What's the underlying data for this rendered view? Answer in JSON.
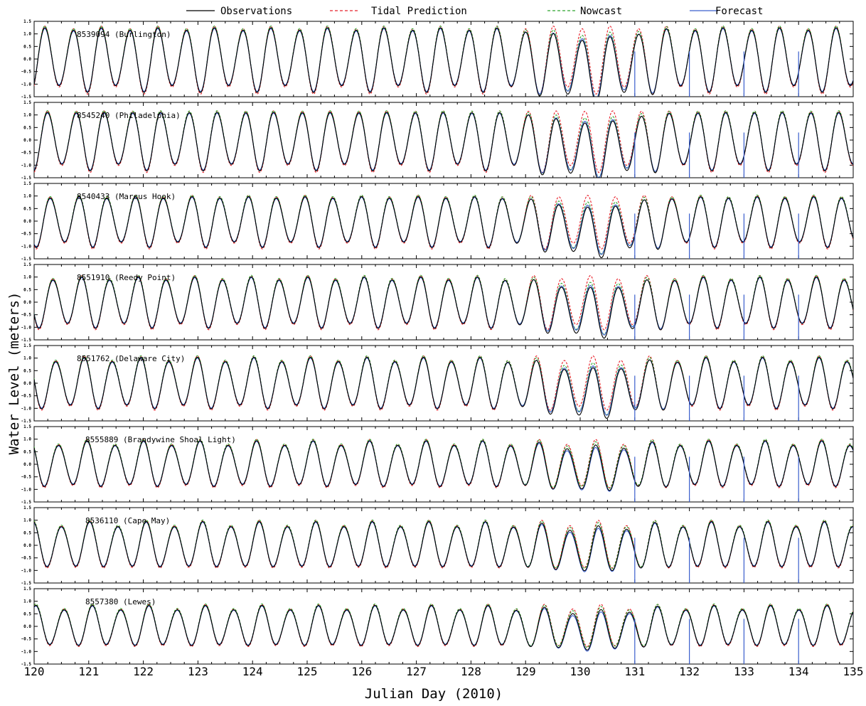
{
  "legend": [
    {
      "label": "Observations",
      "color": "#000000",
      "dash": "solid"
    },
    {
      "label": "Tidal Prediction",
      "color": "#e8202a",
      "dash": "dashed"
    },
    {
      "label": "Nowcast",
      "color": "#2ea52e",
      "dash": "dashed"
    },
    {
      "label": "Forecast",
      "color": "#3a5fcd",
      "dash": "solid"
    }
  ],
  "chart_data": {
    "type": "line",
    "xlabel": "Julian Day (2010)",
    "ylabel": "Water Level (meters)",
    "xlim": [
      120,
      135
    ],
    "x_ticks": [
      "120",
      "121",
      "122",
      "123",
      "124",
      "125",
      "126",
      "127",
      "128",
      "129",
      "130",
      "131",
      "132",
      "133",
      "134",
      "135"
    ],
    "ylim": [
      -1.5,
      1.5
    ],
    "y_ticks": [
      "1.5",
      "1.0",
      "0.5",
      "0.0",
      "-0.5",
      "-1.0",
      "-1.5"
    ],
    "forecast_start_days": [
      131,
      132,
      133,
      134
    ],
    "series_names": [
      "Observations",
      "Tidal Prediction",
      "Nowcast",
      "Forecast"
    ],
    "panels": [
      {
        "station": "8539094 (Burlington)",
        "amplitude_m": 1.2,
        "min_obs_m": -1.6,
        "max_obs_m": 1.5
      },
      {
        "station": "8545240 (Philadelphia)",
        "amplitude_m": 1.1,
        "min_obs_m": -1.3,
        "max_obs_m": 1.3
      },
      {
        "station": "8540433 (Marcus Hook)",
        "amplitude_m": 0.95,
        "min_obs_m": -1.3,
        "max_obs_m": 1.2
      },
      {
        "station": "8551910 (Reedy Point)",
        "amplitude_m": 0.95,
        "min_obs_m": -1.3,
        "max_obs_m": 1.1
      },
      {
        "station": "8551762 (Delaware City)",
        "amplitude_m": 0.95,
        "min_obs_m": -1.4,
        "max_obs_m": 1.2
      },
      {
        "station": "8555889 (Brandywine Shoal Light)",
        "amplitude_m": 0.85,
        "min_obs_m": -0.9,
        "max_obs_m": 1.1
      },
      {
        "station": "8536110 (Cape May)",
        "amplitude_m": 0.85,
        "min_obs_m": -0.9,
        "max_obs_m": 1.1
      },
      {
        "station": "8557380 (Lewes)",
        "amplitude_m": 0.75,
        "min_obs_m": -0.8,
        "max_obs_m": 0.9
      }
    ]
  }
}
